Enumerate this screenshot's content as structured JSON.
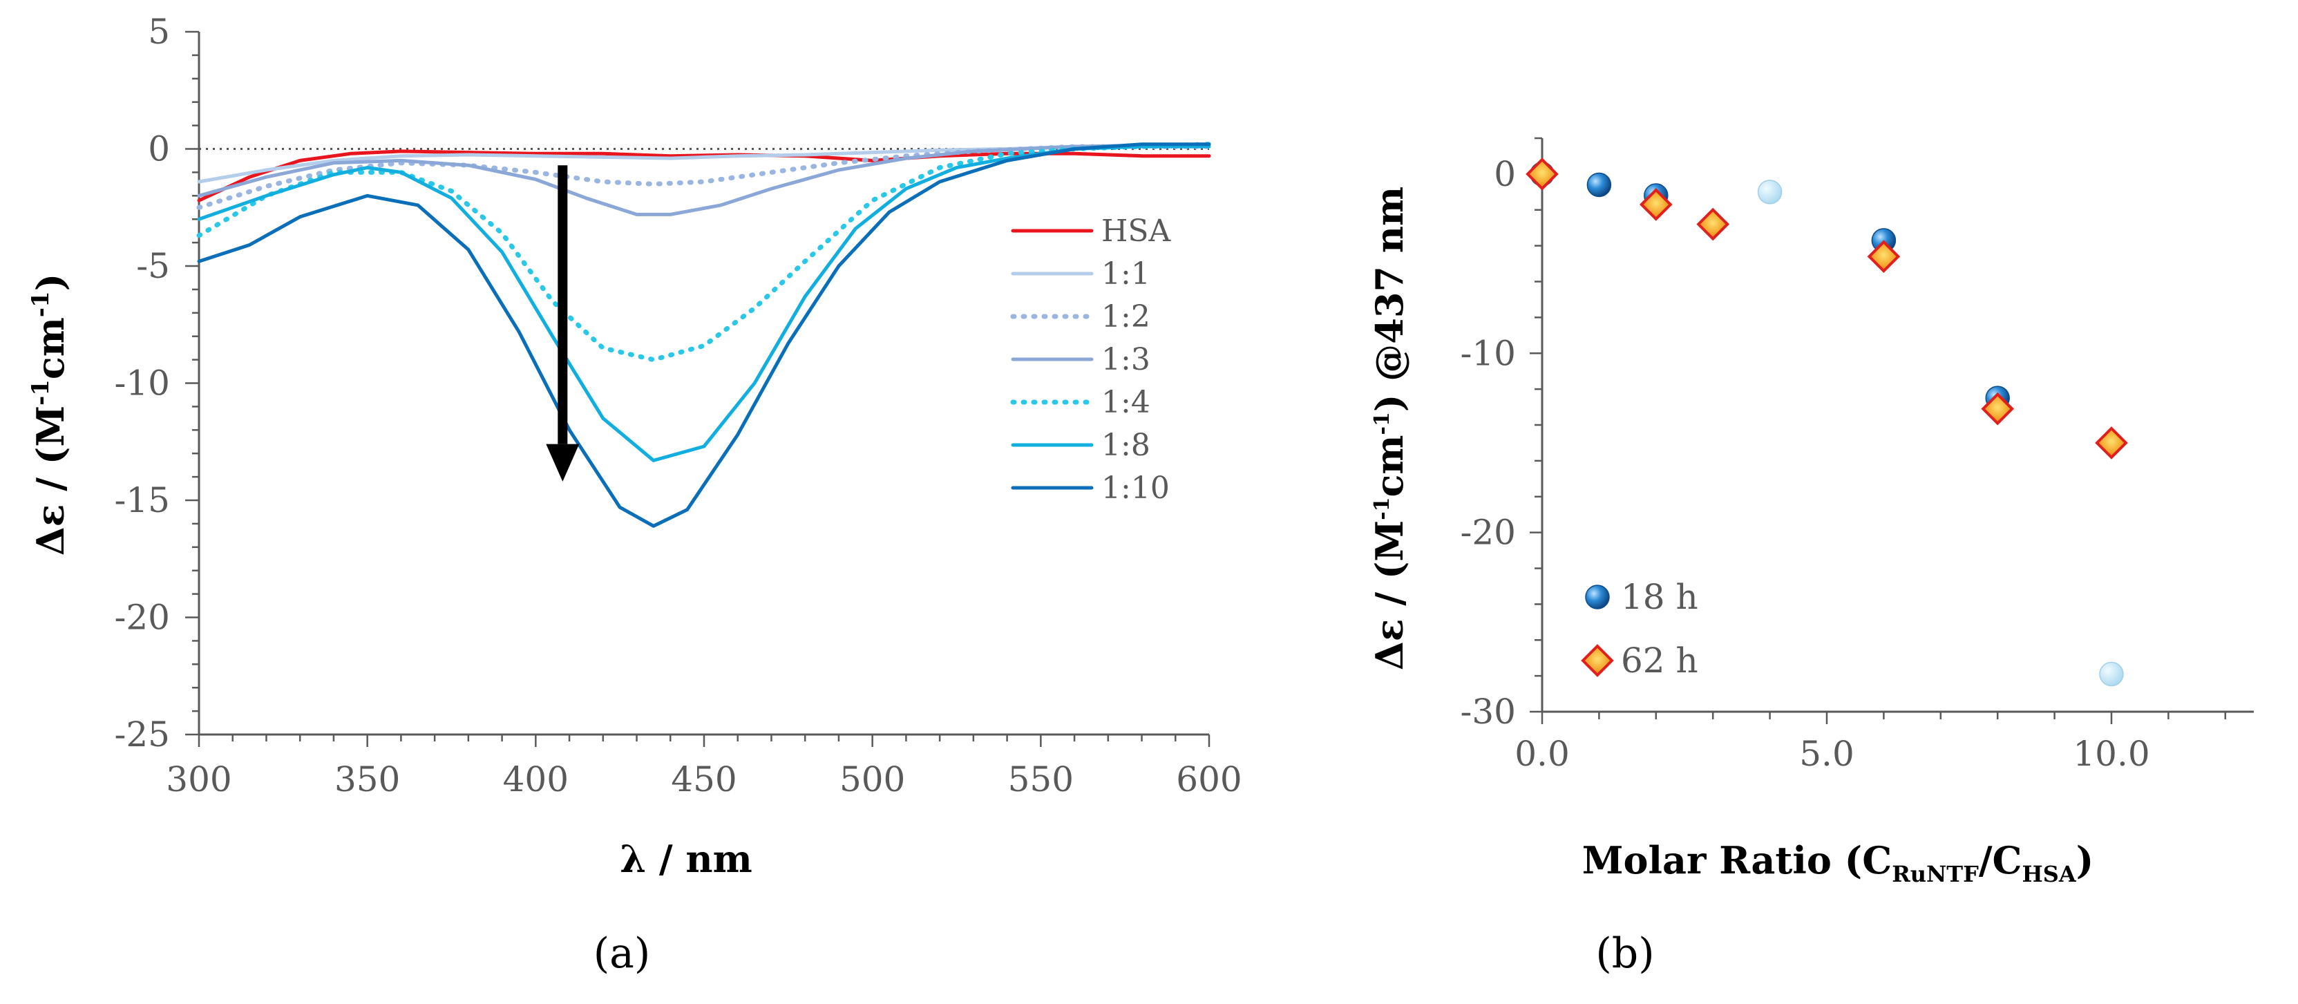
{
  "panel_a_label": "(a)",
  "panel_b_label": "(b)",
  "chart_data": [
    {
      "type": "line",
      "panel": "a",
      "xlabel": "λ / nm",
      "ylabel": "Δε / (M⁻¹cm⁻¹)",
      "ylabel_parts": {
        "prefix": "Δε / (M",
        "sup1": "-1",
        "mid": "cm",
        "sup2": "-1",
        "suffix": ")"
      },
      "xlim": [
        300,
        600
      ],
      "ylim": [
        -25,
        5
      ],
      "xticks": [
        300,
        350,
        400,
        450,
        500,
        550,
        600
      ],
      "yticks": [
        5,
        0,
        -5,
        -10,
        -15,
        -20,
        -25
      ],
      "zero_reference_line": true,
      "annotation": "downward arrow at λ ≈ 408 nm from about -1 to -14 (increasing molar ratio)",
      "series": [
        {
          "name": "HSA",
          "color": "#e8141e",
          "dash": "solid",
          "x": [
            300,
            315,
            330,
            345,
            360,
            380,
            400,
            420,
            440,
            460,
            480,
            500,
            520,
            540,
            560,
            580,
            600
          ],
          "y": [
            -2.2,
            -1.2,
            -0.5,
            -0.2,
            -0.1,
            -0.15,
            -0.2,
            -0.2,
            -0.3,
            -0.25,
            -0.3,
            -0.5,
            -0.3,
            -0.2,
            -0.2,
            -0.3,
            -0.3
          ]
        },
        {
          "name": "1:1",
          "color": "#b4cdea",
          "dash": "solid",
          "x": [
            300,
            320,
            340,
            360,
            380,
            400,
            420,
            440,
            460,
            480,
            500,
            520,
            540,
            560,
            580,
            600
          ],
          "y": [
            -1.4,
            -0.9,
            -0.5,
            -0.3,
            -0.25,
            -0.3,
            -0.35,
            -0.4,
            -0.3,
            -0.25,
            -0.15,
            -0.05,
            0.0,
            0.1,
            0.1,
            0.1
          ]
        },
        {
          "name": "1:2",
          "color": "#9ab6e0",
          "dash": "dotted",
          "x": [
            300,
            320,
            340,
            360,
            380,
            400,
            420,
            435,
            450,
            470,
            490,
            510,
            530,
            560,
            600
          ],
          "y": [
            -2.5,
            -1.6,
            -0.9,
            -0.6,
            -0.7,
            -1.0,
            -1.4,
            -1.5,
            -1.4,
            -1.0,
            -0.6,
            -0.3,
            -0.1,
            0.1,
            0.1
          ]
        },
        {
          "name": "1:3",
          "color": "#8aa7d8",
          "dash": "solid",
          "x": [
            300,
            320,
            340,
            360,
            380,
            400,
            415,
            430,
            440,
            455,
            470,
            490,
            510,
            530,
            560,
            600
          ],
          "y": [
            -2.0,
            -1.2,
            -0.6,
            -0.5,
            -0.7,
            -1.3,
            -2.1,
            -2.8,
            -2.8,
            -2.4,
            -1.7,
            -0.9,
            -0.4,
            -0.1,
            0.1,
            0.2
          ]
        },
        {
          "name": "1:4",
          "color": "#29c7e8",
          "dash": "dotted",
          "x": [
            300,
            320,
            340,
            360,
            375,
            390,
            405,
            420,
            435,
            450,
            465,
            480,
            500,
            520,
            540,
            560,
            580,
            600
          ],
          "y": [
            -3.7,
            -2.0,
            -1.0,
            -1.0,
            -1.8,
            -3.6,
            -6.5,
            -8.5,
            -9.0,
            -8.4,
            -6.8,
            -4.8,
            -2.2,
            -0.8,
            -0.2,
            0.0,
            0.1,
            0.2
          ]
        },
        {
          "name": "1:8",
          "color": "#12aee0",
          "dash": "solid",
          "x": [
            300,
            320,
            340,
            350,
            360,
            375,
            390,
            405,
            420,
            435,
            450,
            465,
            480,
            495,
            510,
            525,
            540,
            560,
            580,
            600
          ],
          "y": [
            -3.0,
            -2.0,
            -1.1,
            -0.8,
            -1.0,
            -2.1,
            -4.4,
            -8.0,
            -11.5,
            -13.3,
            -12.7,
            -10.0,
            -6.3,
            -3.4,
            -1.7,
            -0.8,
            -0.4,
            0.0,
            0.1,
            0.1
          ]
        },
        {
          "name": "1:10",
          "color": "#0a6fb8",
          "dash": "solid",
          "x": [
            300,
            315,
            330,
            350,
            365,
            380,
            395,
            410,
            425,
            435,
            445,
            460,
            475,
            490,
            505,
            520,
            540,
            560,
            580,
            600
          ],
          "y": [
            -4.8,
            -4.1,
            -2.9,
            -2.0,
            -2.4,
            -4.3,
            -7.8,
            -12.0,
            -15.3,
            -16.1,
            -15.4,
            -12.2,
            -8.3,
            -5.0,
            -2.7,
            -1.4,
            -0.5,
            0.0,
            0.2,
            0.2
          ]
        }
      ]
    },
    {
      "type": "scatter",
      "panel": "b",
      "xlabel": "Molar Ratio (C",
      "xlabel_parts": {
        "prefix": "Molar Ratio (C",
        "sub1": "RuNTF",
        "mid": "/C",
        "sub2": "HSA",
        "suffix": ")"
      },
      "ylabel_parts": {
        "prefix": "Δε / (M",
        "sup1": "-1",
        "mid": "cm",
        "sup2": "-1",
        "suffix": ") @437 nm"
      },
      "xlim": [
        0,
        12.5
      ],
      "ylim": [
        -30,
        2
      ],
      "xticks": [
        "0.0",
        "5.0",
        "10.0"
      ],
      "xtick_values": [
        0,
        5,
        10
      ],
      "yticks": [
        0,
        -10,
        -20,
        -30
      ],
      "series": [
        {
          "name": "18 h",
          "marker": "circle",
          "color": "#1b75c2",
          "x": [
            0,
            1,
            2,
            6,
            8
          ],
          "y": [
            0,
            -0.6,
            -1.2,
            -3.7,
            -12.5
          ]
        },
        {
          "name": "18 h (faded)",
          "marker": "circle",
          "color": "#b6def2",
          "x": [
            4,
            10
          ],
          "y": [
            -1.0,
            -27.9
          ]
        },
        {
          "name": "62 h",
          "marker": "diamond",
          "color": "#f2a020",
          "x": [
            0,
            2,
            3,
            6,
            8,
            10
          ],
          "y": [
            0,
            -1.7,
            -2.8,
            -4.6,
            -13.1,
            -15.0
          ]
        }
      ],
      "legend": [
        {
          "name": "18 h",
          "marker": "circle"
        },
        {
          "name": "62 h",
          "marker": "diamond"
        }
      ]
    }
  ]
}
